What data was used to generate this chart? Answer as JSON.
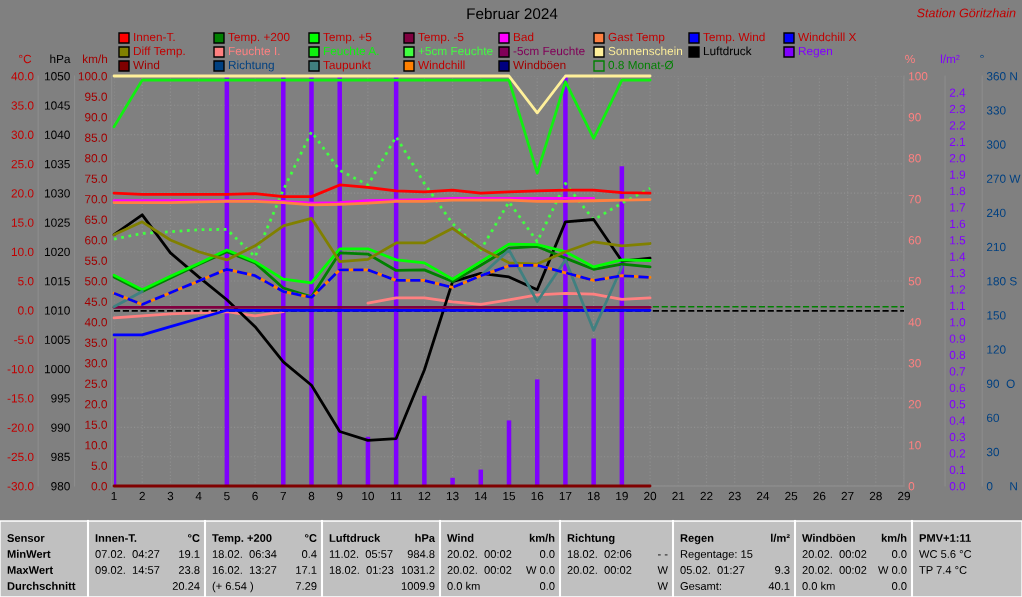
{
  "chart_data": [
    {
      "type": "line",
      "title": "Februar 2024",
      "subtitle": "Station Göritzhain",
      "ylabel": "°C",
      "y2label": "hPa",
      "y3label": "km/h",
      "x": [
        1,
        2,
        3,
        4,
        5,
        6,
        7,
        8,
        9,
        10,
        11,
        12,
        13,
        14,
        15,
        16,
        17,
        18,
        19,
        20
      ],
      "xlim": [
        1,
        29
      ],
      "xticks": [
        1,
        2,
        3,
        4,
        5,
        6,
        7,
        8,
        9,
        10,
        11,
        12,
        13,
        14,
        15,
        16,
        17,
        18,
        19,
        20,
        21,
        22,
        23,
        24,
        25,
        26,
        27,
        28,
        29
      ],
      "ylim": [
        -30,
        40
      ],
      "yticks": [
        {
          "value": -30,
          "label": "-30.0"
        },
        {
          "value": -25,
          "label": "-25.0"
        },
        {
          "value": -20,
          "label": "-20.0"
        },
        {
          "value": -15,
          "label": "-15.0"
        },
        {
          "value": -10,
          "label": "-10.0"
        },
        {
          "value": -5,
          "label": "-5.0"
        },
        {
          "value": 0,
          "label": "0.0"
        },
        {
          "value": 5,
          "label": "5.0"
        },
        {
          "value": 10,
          "label": "10.0"
        },
        {
          "value": 15,
          "label": "15.0"
        },
        {
          "value": 20,
          "label": "20.0"
        },
        {
          "value": 25,
          "label": "25.0"
        },
        {
          "value": 30,
          "label": "30.0"
        },
        {
          "value": 35,
          "label": "35.0"
        },
        {
          "value": 40,
          "label": "40.0"
        }
      ],
      "y2lim": [
        980,
        1050
      ],
      "y2ticks": [
        980,
        985,
        990,
        995,
        1000,
        1005,
        1010,
        1015,
        1020,
        1025,
        1030,
        1035,
        1040,
        1045,
        1050
      ],
      "y3lim": [
        0,
        100
      ],
      "y3ticks": [
        {
          "value": 0,
          "label": "0.0"
        },
        {
          "value": 5,
          "label": "5.0"
        },
        {
          "value": 10,
          "label": "10.0"
        },
        {
          "value": 15,
          "label": "15.0"
        },
        {
          "value": 20,
          "label": "20.0"
        },
        {
          "value": 25,
          "label": "25.0"
        },
        {
          "value": 30,
          "label": "30.0"
        },
        {
          "value": 35,
          "label": "35.0"
        },
        {
          "value": 40,
          "label": "40.0"
        },
        {
          "value": 45,
          "label": "45.0"
        },
        {
          "value": 50,
          "label": "50.0"
        },
        {
          "value": 55,
          "label": "55.0"
        },
        {
          "value": 60,
          "label": "60.0"
        },
        {
          "value": 65,
          "label": "65.0"
        },
        {
          "value": 70,
          "label": "70.0"
        },
        {
          "value": 75,
          "label": "75.0"
        },
        {
          "value": 80,
          "label": "80.0"
        },
        {
          "value": 85,
          "label": "85.0"
        },
        {
          "value": 90,
          "label": "90.0"
        },
        {
          "value": 95,
          "label": "95.0"
        },
        {
          "value": 100,
          "label": "100.0"
        }
      ],
      "grid": true,
      "legend": "top",
      "marker": "none",
      "series": [
        {
          "name": "Innen-T.",
          "color": "#ff0000",
          "values": [
            20.0,
            19.8,
            19.8,
            19.8,
            19.8,
            19.9,
            19.4,
            19.4,
            21.4,
            21.0,
            20.4,
            20.2,
            20.5,
            20.0,
            20.2,
            20.4,
            20.5,
            20.5,
            20.1,
            20.0
          ]
        },
        {
          "name": "Temp. +200",
          "color": "#008000",
          "values": [
            5.7,
            3.2,
            5.5,
            7.8,
            10.0,
            8.1,
            3.8,
            2.3,
            9.8,
            9.6,
            6.8,
            6.9,
            4.9,
            7.7,
            10.6,
            10.9,
            8.9,
            7.0,
            7.9,
            7.4
          ]
        },
        {
          "name": "Temp. +5",
          "color": "#00ff00",
          "values": [
            6.0,
            3.5,
            5.8,
            8.0,
            10.3,
            8.3,
            5.3,
            4.7,
            10.5,
            10.5,
            8.6,
            8.1,
            5.3,
            8.3,
            11.3,
            11.2,
            10.0,
            7.4,
            8.6,
            8.5
          ]
        },
        {
          "name": "Temp. -5",
          "color": "#800040",
          "values": [
            0.5,
            0.5,
            0.5,
            0.5,
            0.5,
            0.5,
            0.5,
            0.5,
            0.5,
            0.5,
            0.5,
            0.5,
            0.5,
            0.5,
            0.5,
            0.5,
            0.5,
            0.5,
            0.5,
            0.5
          ]
        },
        {
          "name": "Bad",
          "color": "#ff00ff",
          "values": [
            18.7,
            18.7,
            18.7,
            18.7,
            18.7,
            18.7,
            18.6,
            18.3,
            18.4,
            18.7,
            18.8,
            18.9,
            19.1,
            19.1,
            19.1,
            19.1,
            19.1,
            19.1,
            null,
            null
          ]
        },
        {
          "name": "Gast Temp",
          "color": "#ff8040",
          "values": [
            18.4,
            18.4,
            18.4,
            18.5,
            18.6,
            18.6,
            18.4,
            18.0,
            18.1,
            18.3,
            18.6,
            18.6,
            18.8,
            18.8,
            18.8,
            18.6,
            18.6,
            18.7,
            18.8,
            18.9
          ]
        },
        {
          "name": "Temp. Wind",
          "color": "#0000ff",
          "values": [
            -4.2,
            -4.2,
            -2.8,
            -1.4,
            0.0,
            0.0,
            0.0,
            0.0,
            0.0,
            0.0,
            0.0,
            0.0,
            0.0,
            0.0,
            0.0,
            0.0,
            0.0,
            0.0,
            0.0,
            0.0
          ]
        },
        {
          "name": "Windchill X",
          "color": "#0000ff",
          "line_style": "dashed",
          "values": [
            2.9,
            1.0,
            3.0,
            5.0,
            7.0,
            5.9,
            3.2,
            2.2,
            6.9,
            6.9,
            5.1,
            5.1,
            3.9,
            5.9,
            7.6,
            7.7,
            6.4,
            5.1,
            5.9,
            5.6
          ]
        },
        {
          "name": "Diff Temp.",
          "color": "#808000",
          "values": [
            12.9,
            15.1,
            12.0,
            10.0,
            8.6,
            11.0,
            14.4,
            15.7,
            8.3,
            8.7,
            11.5,
            11.5,
            14.0,
            10.6,
            8.1,
            7.9,
            10.0,
            11.7,
            11.0,
            11.4
          ]
        },
        {
          "name": "Luftdruck",
          "color": "#000000",
          "axis": "y2",
          "values": [
            1022.9,
            1026.3,
            1019.8,
            1015.7,
            1011.8,
            1007.2,
            1001.2,
            997.2,
            989.3,
            987.8,
            988.1,
            999.8,
            1014.9,
            1016.3,
            1015.7,
            1013.5,
            1025.1,
            1025.5,
            1018.4,
            1018.9
          ]
        },
        {
          "name": "Wind",
          "color": "#800000",
          "axis": "y3",
          "values": [
            0.0,
            0.0,
            0.0,
            0.0,
            0.0,
            0.0,
            0.0,
            0.0,
            0.0,
            0.0,
            0.0,
            0.0,
            0.0,
            0.0,
            0.0,
            0.0,
            0.0,
            0.0,
            0.0,
            0.0
          ]
        },
        {
          "name": "Taupunkt",
          "color": "#408080",
          "values": [
            0.6,
            3.2,
            null,
            null,
            null,
            null,
            null,
            null,
            null,
            null,
            null,
            null,
            null,
            5.9,
            10.3,
            1.5,
            8.6,
            -3.4,
            7.4,
            null
          ]
        },
        {
          "name": "Windchill",
          "color": "#ff8000",
          "values": [
            2.9,
            1.0,
            3.0,
            5.0,
            7.0,
            5.9,
            3.2,
            2.2,
            6.9,
            6.9,
            5.1,
            5.1,
            3.9,
            5.9,
            7.6,
            7.7,
            6.4,
            5.1,
            5.9,
            5.6
          ]
        },
        {
          "name": "Windböen",
          "color": "#000080",
          "axis": "y3",
          "values": [
            null,
            null,
            null,
            null,
            null,
            null,
            null,
            null,
            null,
            null,
            null,
            null,
            null,
            null,
            null,
            null,
            null,
            null,
            null,
            null
          ]
        }
      ],
      "ref_lines": [
        {
          "axis": "y",
          "value": 0.6,
          "label": "0.8 Monat-Ø",
          "color": "#008000",
          "line_style": "dashed"
        },
        {
          "axis": "y2",
          "value": 1009.9,
          "color": "#000000",
          "line_style": "dashed"
        }
      ],
      "annotations": [
        "Sensor",
        "MinWert",
        "MaxWert",
        "Durchschnitt",
        "Innen-T.",
        "°C",
        "07.02.  04:27",
        "19.1",
        "09.02.  14:57",
        "23.8",
        "20.24",
        "Temp. +200",
        "°C",
        "18.02.  06:34",
        "0.4",
        "16.02.  13:27",
        "17.1",
        "(+ 6.54 )",
        "7.29",
        "Luftdruck",
        "hPa",
        "11.02.  05:57",
        "984.8",
        "18.02.  01:23",
        "1031.2",
        "1009.9",
        "Wind",
        "km/h",
        "20.02.  00:02",
        "0.0",
        "20.02.  00:02",
        "W 0.0",
        "0.0 km",
        "0.0",
        "Richtung",
        "18.02.  02:06",
        "- -",
        "20.02.  00:02",
        "W",
        "W",
        "Regen",
        "l/m²",
        "Regentage: 15",
        "05.02.  01:27",
        "9.3",
        "Gesamt:",
        "40.1",
        "Windböen",
        "km/h",
        "20.02.  00:02",
        "0.0",
        "20.02.  00:02",
        "W 0.0",
        "0.0 km",
        "0.0",
        "PMV+1:11",
        "WC 5.6 °C",
        "TP 7.4 °C"
      ]
    },
    {
      "type": "line",
      "ylabel": "%",
      "y2label": "l/m²",
      "y3label": "°",
      "x": [
        1,
        2,
        3,
        4,
        5,
        6,
        7,
        8,
        9,
        10,
        11,
        12,
        13,
        14,
        15,
        16,
        17,
        18,
        19,
        20
      ],
      "xlim": [
        1,
        29
      ],
      "tick_labels": "y",
      "legend": "top",
      "marker": "none",
      "ylim": [
        0,
        100
      ],
      "yticks": [
        0,
        10,
        20,
        30,
        40,
        50,
        60,
        70,
        80,
        90,
        100
      ],
      "y2lim": [
        0,
        2.5
      ],
      "y2ticks": [
        {
          "value": 0,
          "label": "0.0"
        },
        {
          "value": 0.1,
          "label": "0.1"
        },
        {
          "value": 0.2,
          "label": "0.2"
        },
        {
          "value": 0.3,
          "label": "0.3"
        },
        {
          "value": 0.4,
          "label": "0.4"
        },
        {
          "value": 0.5,
          "label": "0.5"
        },
        {
          "value": 0.6,
          "label": "0.6"
        },
        {
          "value": 0.7,
          "label": "0.7"
        },
        {
          "value": 0.8,
          "label": "0.8"
        },
        {
          "value": 0.9,
          "label": "0.9"
        },
        {
          "value": 1.0,
          "label": "1.0"
        },
        {
          "value": 1.1,
          "label": "1.1"
        },
        {
          "value": 1.2,
          "label": "1.2"
        },
        {
          "value": 1.3,
          "label": "1.3"
        },
        {
          "value": 1.4,
          "label": "1.4"
        },
        {
          "value": 1.5,
          "label": "1.5"
        },
        {
          "value": 1.6,
          "label": "1.6"
        },
        {
          "value": 1.7,
          "label": "1.7"
        },
        {
          "value": 1.8,
          "label": "1.8"
        },
        {
          "value": 1.9,
          "label": "1.9"
        },
        {
          "value": 2.0,
          "label": "2.0"
        },
        {
          "value": 2.1,
          "label": "2.1"
        },
        {
          "value": 2.2,
          "label": "2.2"
        },
        {
          "value": 2.3,
          "label": "2.3"
        },
        {
          "value": 2.4,
          "label": "2.4"
        }
      ],
      "y3lim": [
        0,
        360
      ],
      "y3ticks": [
        {
          "value": 0,
          "label": "0     N"
        },
        {
          "value": 30,
          "label": "30"
        },
        {
          "value": 60,
          "label": "60"
        },
        {
          "value": 90,
          "label": "90  O"
        },
        {
          "value": 120,
          "label": "120"
        },
        {
          "value": 150,
          "label": "150"
        },
        {
          "value": 180,
          "label": "180 S"
        },
        {
          "value": 210,
          "label": "210"
        },
        {
          "value": 240,
          "label": "240"
        },
        {
          "value": 270,
          "label": "270 W"
        },
        {
          "value": 300,
          "label": "300"
        },
        {
          "value": 330,
          "label": "330"
        },
        {
          "value": 360,
          "label": "360 N"
        }
      ],
      "series": [
        {
          "name": "Feuchte I.",
          "color": "#ff8080",
          "values": [
            41.0,
            41.5,
            42.0,
            42.2,
            42.5,
            41.5,
            42.5,
            null,
            null,
            44.6,
            45.9,
            45.9,
            44.9,
            44.3,
            45.4,
            46.6,
            47.0,
            46.8,
            45.5,
            45.9
          ]
        },
        {
          "name": "Feuchte A.",
          "color": "#10f010",
          "values": [
            87.6,
            99,
            99,
            99,
            99,
            99,
            99,
            99,
            99,
            99,
            99,
            99,
            99,
            99,
            99,
            76.3,
            98.6,
            84.8,
            99,
            99
          ]
        },
        {
          "name": "+5cm Feuchte",
          "color": "#40ff40",
          "line_style": "dotted",
          "values": [
            60.2,
            61.6,
            62.0,
            62.5,
            62.6,
            55.9,
            72.2,
            86.4,
            77.0,
            73.4,
            85.2,
            73.8,
            64.0,
            57.6,
            69.3,
            59.6,
            73.8,
            64.9,
            69.0,
            72.6
          ]
        },
        {
          "name": "-5cm Feuchte",
          "color": "#800058",
          "values": [
            null,
            null,
            null,
            null,
            null,
            null,
            null,
            null,
            null,
            null,
            null,
            null,
            null,
            null,
            null,
            null,
            null,
            null,
            null,
            null
          ]
        },
        {
          "name": "Sonnenschein",
          "color": "#fff09a",
          "values": [
            100,
            100,
            100,
            100,
            100,
            100,
            100,
            100,
            100,
            100,
            100,
            100,
            100,
            100,
            100,
            91,
            100,
            100,
            100,
            100
          ]
        },
        {
          "name": "Regen",
          "color": "#8000ff",
          "axis": "y2",
          "type": "bar",
          "values": [
            0.9,
            null,
            null,
            null,
            2.5,
            null,
            2.5,
            2.5,
            2.5,
            0.3,
            2.5,
            0.55,
            0.05,
            0.1,
            0.4,
            0.65,
            2.5,
            0.9,
            1.95,
            null
          ]
        },
        {
          "name": "Richtung",
          "color": "#004080",
          "axis": "y3",
          "values": [
            null,
            null,
            null,
            null,
            null,
            null,
            null,
            null,
            null,
            null,
            null,
            null,
            null,
            null,
            null,
            null,
            null,
            null,
            null,
            null
          ]
        }
      ]
    }
  ]
}
